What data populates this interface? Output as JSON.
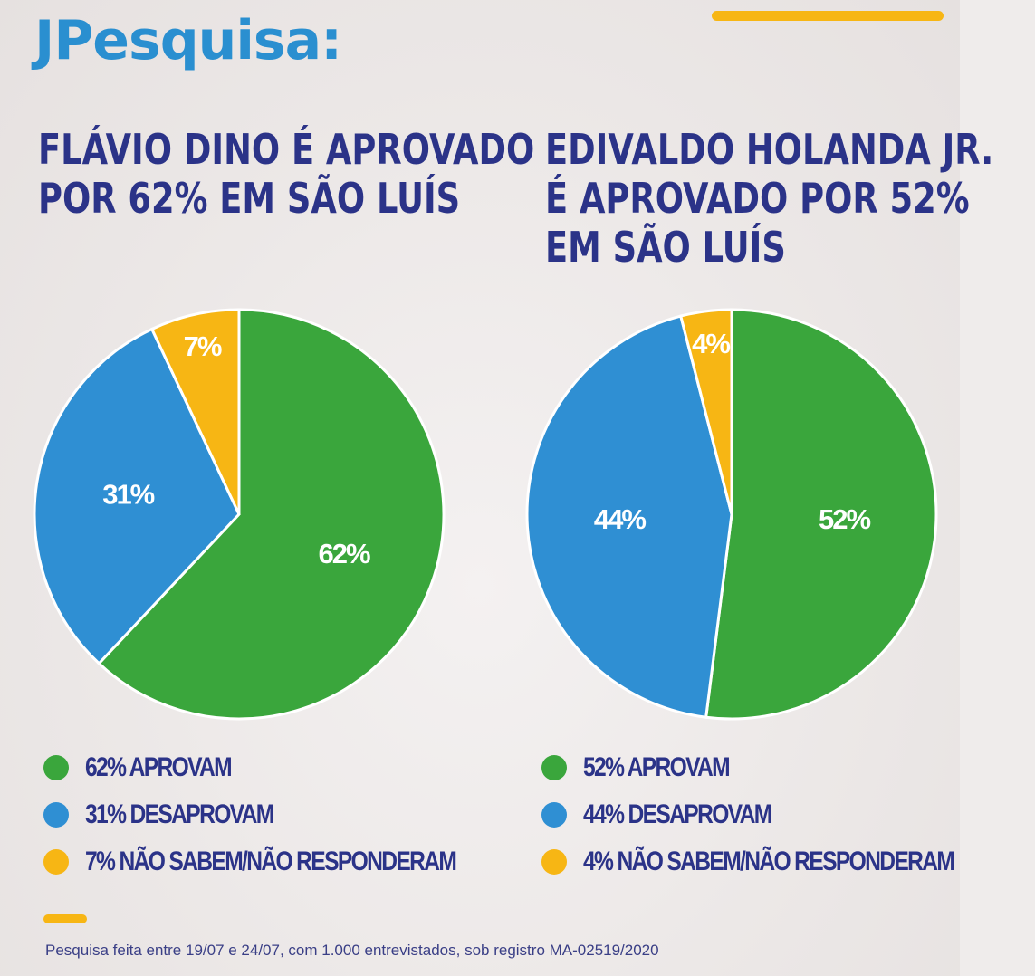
{
  "brand": "JPesquisa:",
  "colors": {
    "accent_yellow": "#f7b614",
    "green": "#3aa63c",
    "blue": "#2f8fd3",
    "yellow": "#f7b614",
    "navy": "#2b3388"
  },
  "chart_data": [
    {
      "type": "pie",
      "title": "FLÁVIO DINO É APROVADO POR 62% EM SÃO LUÍS",
      "title_lines": [
        "FLÁVIO DINO É APROVADO",
        "POR 62% EM SÃO LUÍS"
      ],
      "slices": [
        {
          "label": "62%",
          "value": 62,
          "color": "#3aa63c",
          "legend": "62% APROVAM"
        },
        {
          "label": "31%",
          "value": 31,
          "color": "#2f8fd3",
          "legend": "31% DESAPROVAM"
        },
        {
          "label": "7%",
          "value": 7,
          "color": "#f7b614",
          "legend": "7% NÃO SABEM/NÃO RESPONDERAM"
        }
      ]
    },
    {
      "type": "pie",
      "title": "EDIVALDO HOLANDA JR. É APROVADO POR 52% EM SÃO LUÍS",
      "title_lines": [
        "EDIVALDO HOLANDA JR.",
        "É APROVADO POR 52%",
        "EM SÃO LUÍS"
      ],
      "slices": [
        {
          "label": "52%",
          "value": 52,
          "color": "#3aa63c",
          "legend": "52% APROVAM"
        },
        {
          "label": "44%",
          "value": 44,
          "color": "#2f8fd3",
          "legend": "44% DESAPROVAM"
        },
        {
          "label": "4%",
          "value": 4,
          "color": "#f7b614",
          "legend": "4% NÃO SABEM/NÃO RESPONDERAM"
        }
      ]
    }
  ],
  "footnote": "Pesquisa feita entre 19/07 e 24/07, com 1.000 entrevistados, sob registro MA-02519/2020"
}
